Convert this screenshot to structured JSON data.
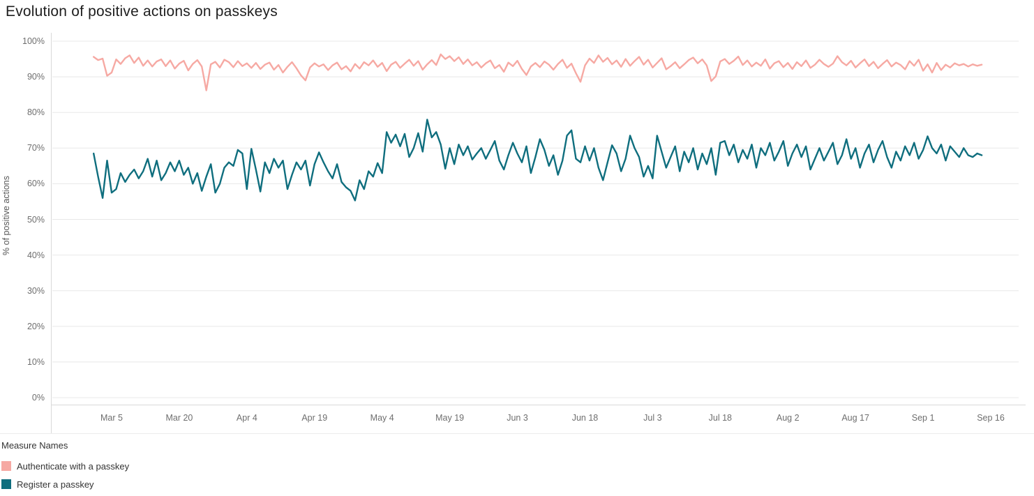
{
  "title": "Evolution of positive actions on passkeys",
  "chart_data": {
    "type": "line",
    "title": "Evolution of positive actions on passkeys",
    "xlabel": "",
    "ylabel": "% of positive actions",
    "ylim": [
      0,
      100
    ],
    "grid": true,
    "legend_position": "bottom-left",
    "legend_title": "Measure Names",
    "y_ticks": [
      "0%",
      "10%",
      "20%",
      "30%",
      "40%",
      "50%",
      "60%",
      "70%",
      "80%",
      "90%",
      "100%"
    ],
    "x_tick_labels": [
      "Mar 5",
      "Mar 20",
      "Apr 4",
      "Apr 19",
      "May 4",
      "May 19",
      "Jun 3",
      "Jun 18",
      "Jul 3",
      "Jul 18",
      "Aug 2",
      "Aug 17",
      "Sep 1",
      "Sep 16"
    ],
    "x_tick_days": [
      4,
      19,
      34,
      49,
      64,
      79,
      94,
      109,
      124,
      139,
      154,
      169,
      184,
      199
    ],
    "x_sampling": "daily, first sample 4 days before first tick (Mar 5)",
    "series": [
      {
        "name": "Authenticate with a passkey",
        "color": "#f6a9a3",
        "values": [
          95.6,
          94.7,
          95.1,
          90.3,
          91.2,
          94.9,
          93.6,
          95.2,
          96.0,
          93.9,
          95.4,
          93.1,
          94.6,
          92.9,
          94.3,
          94.9,
          93.0,
          94.6,
          92.3,
          93.7,
          94.5,
          91.8,
          93.6,
          94.7,
          92.9,
          86.2,
          93.5,
          94.2,
          92.6,
          94.8,
          94.1,
          92.7,
          94.4,
          93.0,
          93.8,
          92.5,
          93.9,
          92.2,
          93.4,
          94.0,
          92.0,
          93.3,
          91.2,
          92.8,
          94.1,
          92.4,
          90.4,
          89.0,
          92.6,
          93.8,
          92.9,
          93.5,
          91.9,
          93.2,
          94.0,
          92.1,
          93.0,
          91.5,
          93.6,
          92.3,
          94.1,
          93.2,
          94.6,
          92.8,
          93.9,
          91.6,
          93.4,
          94.2,
          92.5,
          93.7,
          94.8,
          93.1,
          94.4,
          92.0,
          93.5,
          94.7,
          93.3,
          96.3,
          95.0,
          95.8,
          94.4,
          95.5,
          93.6,
          94.9,
          93.2,
          94.1,
          92.6,
          93.8,
          94.6,
          92.4,
          93.3,
          91.4,
          94.0,
          93.0,
          94.5,
          92.2,
          90.5,
          92.9,
          93.9,
          92.7,
          94.3,
          93.4,
          92.0,
          93.6,
          94.8,
          92.5,
          93.7,
          91.0,
          88.6,
          93.2,
          95.1,
          93.9,
          96.0,
          94.2,
          95.3,
          93.5,
          94.6,
          92.8,
          95.0,
          93.1,
          94.4,
          95.6,
          93.4,
          94.8,
          92.6,
          93.9,
          95.2,
          92.1,
          93.0,
          94.1,
          92.4,
          93.5,
          94.7,
          95.4,
          93.8,
          94.9,
          93.2,
          88.8,
          90.1,
          94.3,
          95.0,
          93.6,
          94.5,
          95.7,
          93.3,
          94.6,
          92.9,
          94.0,
          93.1,
          94.9,
          92.3,
          93.8,
          94.4,
          92.7,
          93.9,
          92.2,
          94.1,
          93.0,
          94.6,
          92.5,
          93.4,
          94.8,
          93.6,
          92.8,
          93.7,
          95.8,
          94.1,
          93.2,
          94.5,
          92.6,
          93.8,
          94.9,
          93.0,
          94.2,
          92.4,
          93.6,
          94.7,
          92.9,
          94.0,
          93.3,
          92.1,
          94.4,
          93.1,
          94.8,
          91.7,
          93.5,
          91.2,
          93.9,
          91.9,
          93.4,
          92.6,
          93.8,
          93.2,
          93.6,
          92.9,
          93.5,
          93.1,
          93.4
        ]
      },
      {
        "name": "Register a passkey",
        "color": "#0f6e7e",
        "values": [
          68.5,
          62.0,
          56.0,
          66.5,
          57.5,
          58.5,
          63.0,
          60.5,
          62.5,
          64.0,
          61.5,
          63.5,
          67.0,
          62.0,
          66.5,
          61.0,
          63.0,
          66.0,
          63.5,
          66.5,
          62.5,
          64.5,
          60.0,
          63.0,
          58.0,
          62.0,
          65.5,
          57.5,
          60.0,
          64.5,
          66.0,
          65.0,
          69.5,
          68.5,
          58.5,
          69.8,
          64.0,
          57.8,
          66.0,
          63.0,
          67.0,
          64.5,
          66.5,
          58.5,
          62.5,
          66.0,
          64.0,
          66.5,
          59.5,
          65.5,
          68.8,
          66.0,
          63.5,
          61.5,
          65.5,
          60.5,
          59.0,
          58.0,
          55.3,
          61.0,
          58.5,
          63.5,
          62.0,
          65.8,
          63.0,
          74.5,
          71.5,
          73.8,
          70.5,
          74.0,
          67.5,
          70.0,
          74.2,
          69.0,
          78.0,
          73.0,
          74.5,
          71.0,
          64.2,
          70.0,
          65.5,
          71.0,
          68.0,
          70.5,
          66.8,
          68.5,
          70.0,
          67.0,
          69.5,
          72.0,
          66.5,
          64.0,
          68.0,
          71.5,
          68.5,
          66.0,
          70.5,
          63.0,
          67.5,
          72.5,
          69.5,
          65.0,
          68.0,
          62.5,
          66.5,
          73.5,
          75.0,
          67.0,
          66.0,
          70.5,
          66.5,
          70.0,
          64.5,
          61.0,
          66.0,
          70.8,
          68.5,
          63.5,
          67.0,
          73.5,
          70.0,
          67.5,
          62.0,
          65.0,
          61.5,
          73.5,
          69.0,
          64.5,
          67.5,
          70.5,
          63.5,
          69.0,
          66.0,
          70.0,
          64.0,
          68.5,
          65.5,
          70.0,
          62.5,
          71.5,
          72.0,
          68.0,
          71.0,
          66.0,
          69.5,
          67.0,
          71.0,
          64.5,
          70.0,
          68.0,
          71.5,
          66.5,
          69.0,
          72.0,
          65.0,
          68.5,
          71.0,
          67.5,
          70.5,
          64.0,
          67.0,
          70.0,
          66.5,
          69.0,
          71.5,
          65.5,
          68.0,
          72.5,
          67.0,
          70.0,
          64.5,
          68.5,
          71.0,
          66.0,
          69.5,
          72.0,
          67.5,
          64.5,
          69.0,
          66.5,
          70.5,
          68.0,
          71.5,
          67.0,
          69.5,
          73.3,
          70.0,
          68.5,
          71.0,
          66.5,
          70.5,
          69.0,
          67.5,
          70.0,
          68.0,
          67.5,
          68.5,
          68.0
        ]
      }
    ]
  },
  "legend": {
    "title": "Measure Names",
    "items": [
      {
        "label": "Authenticate with a passkey",
        "color": "#f6a9a3"
      },
      {
        "label": "Register a passkey",
        "color": "#0f6e7e"
      }
    ]
  }
}
